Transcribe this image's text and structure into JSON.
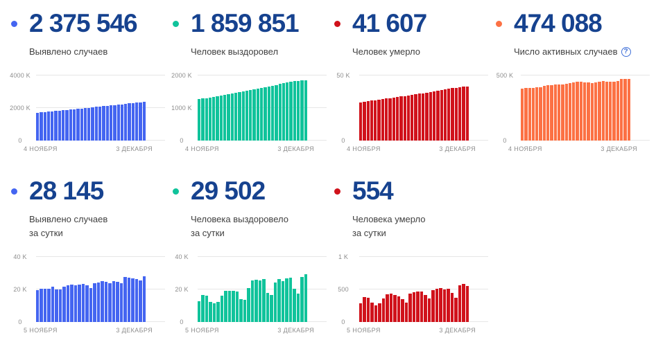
{
  "cards": [
    {
      "value": "2 375 546",
      "label": "Выявлено случаев",
      "accent": "#4465F1"
    },
    {
      "value": "1 859 851",
      "label": "Человек выздоровел",
      "accent": "#10C39B"
    },
    {
      "value": "41 607",
      "label": "Человек умерло",
      "accent": "#D0121B"
    },
    {
      "value": "474 088",
      "label": "Число активных случаев",
      "accent": "#FC7144",
      "help_icon": "?"
    },
    {
      "value": "28 145",
      "label": "Выявлено случаев",
      "label_line2": "за сутки",
      "accent": "#4465F1"
    },
    {
      "value": "29 502",
      "label": "Человека выздоровело",
      "label_line2": "за сутки",
      "accent": "#10C39B"
    },
    {
      "value": "554",
      "label": "Человека умерло",
      "label_line2": "за сутки",
      "accent": "#D0121B"
    }
  ],
  "chart_data": [
    {
      "type": "bar",
      "title": "Выявлено случаев",
      "color": "#4465F1",
      "ylim": [
        0,
        4000
      ],
      "unit": "K",
      "yticks": [
        {
          "value": 4000,
          "label": "4000 K"
        },
        {
          "value": 2000,
          "label": "2000 K"
        },
        {
          "value": 0,
          "label": "0"
        }
      ],
      "x_start_label": "4 НОЯБРЯ",
      "x_end_label": "3 ДЕКАБРЯ",
      "values": [
        1713,
        1733,
        1754,
        1774,
        1795,
        1817,
        1839,
        1861,
        1884,
        1906,
        1929,
        1951,
        1974,
        1996,
        2019,
        2042,
        2066,
        2090,
        2114,
        2139,
        2163,
        2187,
        2210,
        2234,
        2260,
        2285,
        2310,
        2328,
        2347,
        2375
      ]
    },
    {
      "type": "bar",
      "title": "Человек выздоровел",
      "color": "#10C39B",
      "ylim": [
        0,
        2000
      ],
      "unit": "K",
      "yticks": [
        {
          "value": 2000,
          "label": "2000 K"
        },
        {
          "value": 1000,
          "label": "1000 K"
        },
        {
          "value": 0,
          "label": "0"
        }
      ],
      "x_start_label": "4 НОЯБРЯ",
      "x_end_label": "3 ДЕКАБРЯ",
      "values": [
        1270,
        1288,
        1306,
        1325,
        1344,
        1363,
        1383,
        1403,
        1423,
        1444,
        1465,
        1486,
        1508,
        1530,
        1552,
        1574,
        1597,
        1620,
        1643,
        1666,
        1690,
        1713,
        1737,
        1760,
        1784,
        1807,
        1820,
        1833,
        1846,
        1860
      ]
    },
    {
      "type": "bar",
      "title": "Человек умерло",
      "color": "#D0121B",
      "ylim": [
        0,
        50
      ],
      "unit": "K",
      "yticks": [
        {
          "value": 50,
          "label": "50 K"
        },
        {
          "value": 0,
          "label": "0"
        }
      ],
      "x_start_label": "4 НОЯБРЯ",
      "x_end_label": "3 ДЕКАБРЯ",
      "values": [
        29.5,
        29.8,
        30.2,
        30.6,
        31.0,
        31.4,
        31.8,
        32.2,
        32.6,
        33.0,
        33.4,
        33.8,
        34.2,
        34.7,
        35.1,
        35.5,
        36.0,
        36.4,
        36.9,
        37.3,
        37.8,
        38.3,
        38.8,
        39.2,
        39.7,
        40.2,
        40.6,
        41.0,
        41.3,
        41.6
      ]
    },
    {
      "type": "bar",
      "title": "Число активных случаев",
      "color": "#FC7144",
      "ylim": [
        0,
        500
      ],
      "unit": "K",
      "yticks": [
        {
          "value": 500,
          "label": "500 K"
        },
        {
          "value": 0,
          "label": "0"
        }
      ],
      "x_start_label": "4 НОЯБРЯ",
      "x_end_label": "3 ДЕКАБРЯ",
      "values": [
        398,
        402,
        404,
        406,
        408,
        412,
        420,
        424,
        427,
        429,
        431,
        433,
        437,
        443,
        449,
        453,
        451,
        447,
        445,
        443,
        446,
        452,
        456,
        454,
        452,
        453,
        457,
        472,
        476,
        474
      ]
    },
    {
      "type": "bar",
      "title": "Выявлено случаев за сутки",
      "color": "#4465F1",
      "ylim": [
        0,
        40
      ],
      "unit": "K",
      "yticks": [
        {
          "value": 40,
          "label": "40 K"
        },
        {
          "value": 20,
          "label": "20 K"
        },
        {
          "value": 0,
          "label": "0"
        }
      ],
      "x_start_label": "5 НОЯБРЯ",
      "x_end_label": "3 ДЕКАБРЯ",
      "values": [
        19.4,
        20.4,
        20.5,
        20.6,
        21.9,
        20.0,
        19.9,
        21.8,
        22.4,
        22.9,
        22.7,
        22.8,
        23.2,
        22.4,
        21.0,
        23.7,
        24.3,
        25.0,
        24.8,
        23.7,
        25.1,
        24.7,
        23.7,
        27.5,
        27.3,
        26.7,
        26.6,
        25.4,
        28.1
      ]
    },
    {
      "type": "bar",
      "title": "Человека выздоровело за сутки",
      "color": "#10C39B",
      "ylim": [
        0,
        40
      ],
      "unit": "K",
      "yticks": [
        {
          "value": 40,
          "label": "40 K"
        },
        {
          "value": 20,
          "label": "20 K"
        },
        {
          "value": 0,
          "label": "0"
        }
      ],
      "x_start_label": "5 НОЯБРЯ",
      "x_end_label": "3 ДЕКАБРЯ",
      "values": [
        12.6,
        16.6,
        16.2,
        12.2,
        11.4,
        12.4,
        16.2,
        19.0,
        19.2,
        19.0,
        18.8,
        14.2,
        13.8,
        21.0,
        25.5,
        25.8,
        25.5,
        26.3,
        17.9,
        16.5,
        24.4,
        26.2,
        25.0,
        27.0,
        27.1,
        20.6,
        17.3,
        27.7,
        29.5
      ]
    },
    {
      "type": "bar",
      "title": "Человека умерло за сутки",
      "color": "#D0121B",
      "ylim": [
        0,
        1000
      ],
      "unit": "",
      "yticks": [
        {
          "value": 1000,
          "label": "1 K"
        },
        {
          "value": 500,
          "label": "500"
        },
        {
          "value": 0,
          "label": "0"
        }
      ],
      "x_start_label": "5 НОЯБРЯ",
      "x_end_label": "3 ДЕКАБРЯ",
      "values": [
        290,
        380,
        370,
        300,
        255,
        290,
        365,
        430,
        440,
        420,
        390,
        350,
        300,
        440,
        455,
        465,
        465,
        420,
        360,
        490,
        510,
        520,
        500,
        510,
        445,
        370,
        560,
        590,
        554
      ]
    }
  ]
}
